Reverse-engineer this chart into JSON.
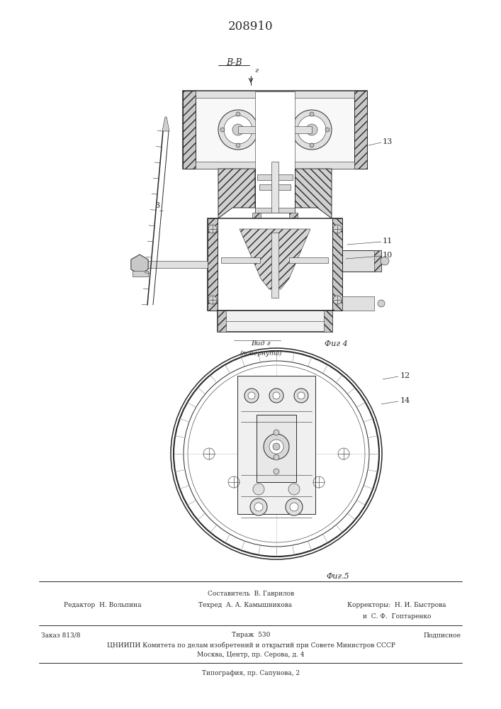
{
  "patent_number": "208910",
  "bg_color": "#ffffff",
  "line_color": "#2a2a2a",
  "fig_width": 7.07,
  "fig_height": 10.0,
  "dpi": 100,
  "top_label": "В-В",
  "fig4_label": "Фиг 4",
  "fig5_label": "Фиг.5",
  "footer": {
    "составитель": "Составитель  В. Гаврилов",
    "редактор": "Редактор  Н. Вольпина",
    "техред": "Техред  А. А. Камышникова",
    "корректоры_label": "Корректоры:  Н. И. Быстрова",
    "корректор2": "и  С. Ф.  Гоптаренко",
    "заказ": "Заказ 813/8",
    "тираж": "Тираж  530",
    "подписное": "Подписное",
    "цниипи": "ЦНИИПИ Комитета по делам изобретений и открытий при Совете Министров СССР",
    "москва": "Москва, Центр, пр. Серова, д. 4",
    "типография": "Типография, пр. Сапунова, 2"
  }
}
